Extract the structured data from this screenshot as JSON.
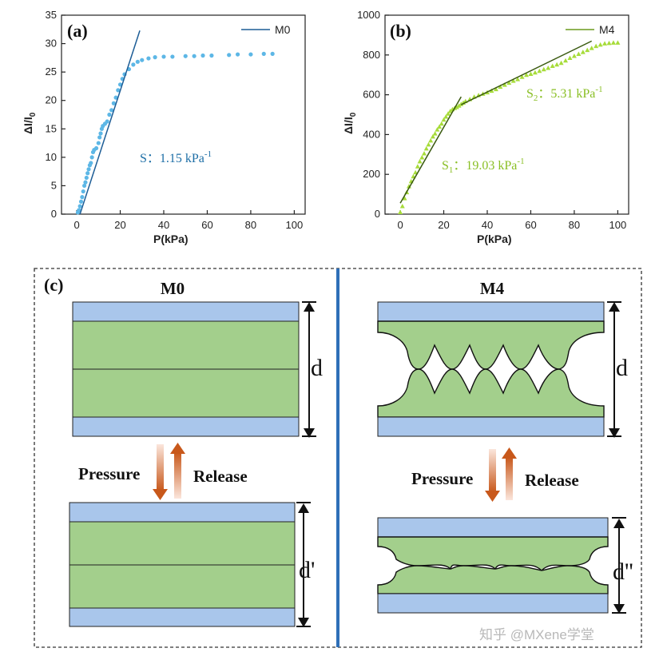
{
  "chart_data": [
    {
      "panel": "(a)",
      "type": "scatter",
      "xlabel": "P(kPa)",
      "ylabel": "ΔI/I",
      "ylabel_sub": "0",
      "xlim": [
        -7,
        105
      ],
      "ylim": [
        0,
        35
      ],
      "xticks": [
        "0",
        "20",
        "40",
        "60",
        "80",
        "100"
      ],
      "yticks": [
        "0",
        "5",
        "10",
        "15",
        "20",
        "25",
        "30",
        "35"
      ],
      "legend": "M0",
      "marker_color": "#5db7e6",
      "fit_color": "#1d5d96",
      "annotation": {
        "text": "S：1.15 kPa",
        "sup": "-1",
        "color": "#1d6ea6"
      },
      "points": [
        [
          0.5,
          0.3
        ],
        [
          1,
          0.7
        ],
        [
          1.5,
          1.4
        ],
        [
          2,
          2.2
        ],
        [
          2.5,
          3.0
        ],
        [
          3,
          4.0
        ],
        [
          3.5,
          5.0
        ],
        [
          4,
          5.6
        ],
        [
          4.5,
          6.4
        ],
        [
          5,
          7.2
        ],
        [
          5.5,
          7.9
        ],
        [
          6,
          8.6
        ],
        [
          6.5,
          9.0
        ],
        [
          7,
          10.0
        ],
        [
          7.5,
          10.9
        ],
        [
          8,
          11.3
        ],
        [
          9,
          11.6
        ],
        [
          10,
          12.5
        ],
        [
          10.5,
          13.5
        ],
        [
          11,
          14.2
        ],
        [
          11.5,
          15.0
        ],
        [
          12,
          15.5
        ],
        [
          13,
          15.9
        ],
        [
          14,
          16.3
        ],
        [
          15,
          17.5
        ],
        [
          16,
          18.3
        ],
        [
          17,
          19.5
        ],
        [
          18,
          20.5
        ],
        [
          19,
          21.8
        ],
        [
          20,
          22.8
        ],
        [
          21,
          23.8
        ],
        [
          22,
          24.6
        ],
        [
          24,
          25.5
        ],
        [
          26,
          26.3
        ],
        [
          28,
          26.8
        ],
        [
          30,
          27.1
        ],
        [
          33,
          27.4
        ],
        [
          36,
          27.6
        ],
        [
          40,
          27.7
        ],
        [
          44,
          27.7
        ],
        [
          50,
          27.8
        ],
        [
          54,
          27.8
        ],
        [
          58,
          27.9
        ],
        [
          62,
          27.9
        ],
        [
          70,
          28.0
        ],
        [
          74,
          28.1
        ],
        [
          80,
          28.1
        ],
        [
          86,
          28.2
        ],
        [
          90,
          28.2
        ]
      ],
      "fit_line": [
        [
          1.5,
          0
        ],
        [
          29,
          32.3
        ]
      ]
    },
    {
      "panel": "(b)",
      "type": "scatter",
      "xlabel": "P(kPa)",
      "ylabel": "ΔI/I",
      "ylabel_sub": "0",
      "xlim": [
        -7,
        105
      ],
      "ylim": [
        0,
        1000
      ],
      "xticks": [
        "0",
        "20",
        "40",
        "60",
        "80",
        "100"
      ],
      "yticks": [
        "0",
        "200",
        "400",
        "600",
        "800",
        "1000"
      ],
      "legend": "M4",
      "marker_color": "#a7dc3a",
      "fit_color": "#3a5a10",
      "annotations": [
        {
          "text": "S",
          "sub": "2",
          "rest": "：5.31 kPa",
          "sup": "-1",
          "color": "#8abf25"
        },
        {
          "text": "S",
          "sub": "1",
          "rest": "：19.03 kPa",
          "sup": "-1",
          "color": "#8abf25"
        }
      ],
      "points": [
        [
          0,
          10
        ],
        [
          1,
          40
        ],
        [
          2,
          80
        ],
        [
          3,
          110
        ],
        [
          4,
          140
        ],
        [
          5,
          165
        ],
        [
          6,
          190
        ],
        [
          7,
          210
        ],
        [
          8,
          240
        ],
        [
          9,
          265
        ],
        [
          10,
          285
        ],
        [
          11,
          305
        ],
        [
          12,
          330
        ],
        [
          13,
          350
        ],
        [
          14,
          370
        ],
        [
          15,
          390
        ],
        [
          16,
          405
        ],
        [
          17,
          425
        ],
        [
          18,
          440
        ],
        [
          19,
          455
        ],
        [
          20,
          475
        ],
        [
          21,
          490
        ],
        [
          22,
          505
        ],
        [
          23,
          518
        ],
        [
          24,
          527
        ],
        [
          25,
          533
        ],
        [
          26,
          538
        ],
        [
          27,
          545
        ],
        [
          28,
          553
        ],
        [
          29,
          560
        ],
        [
          30,
          568
        ],
        [
          32,
          578
        ],
        [
          34,
          590
        ],
        [
          36,
          598
        ],
        [
          38,
          605
        ],
        [
          40,
          612
        ],
        [
          42,
          620
        ],
        [
          44,
          628
        ],
        [
          46,
          640
        ],
        [
          48,
          650
        ],
        [
          50,
          660
        ],
        [
          52,
          670
        ],
        [
          54,
          678
        ],
        [
          56,
          690
        ],
        [
          58,
          700
        ],
        [
          60,
          705
        ],
        [
          62,
          712
        ],
        [
          64,
          720
        ],
        [
          66,
          728
        ],
        [
          68,
          735
        ],
        [
          70,
          745
        ],
        [
          72,
          752
        ],
        [
          74,
          760
        ],
        [
          76,
          772
        ],
        [
          78,
          785
        ],
        [
          80,
          795
        ],
        [
          82,
          805
        ],
        [
          84,
          815
        ],
        [
          86,
          825
        ],
        [
          88,
          835
        ],
        [
          90,
          845
        ],
        [
          92,
          852
        ],
        [
          94,
          858
        ],
        [
          96,
          860
        ],
        [
          98,
          862
        ],
        [
          100,
          862
        ]
      ],
      "fit_lines": [
        [
          [
            0,
            55
          ],
          [
            28,
            590
          ]
        ],
        [
          [
            28,
            550
          ],
          [
            88,
            870
          ]
        ]
      ]
    }
  ],
  "panel_c": {
    "tag": "(c)",
    "left_title": "M0",
    "right_title": "M4",
    "pressure_label": "Pressure",
    "release_label": "Release",
    "dim_d": "d",
    "dim_d_prime": "d'",
    "dim_d_double_prime": "d''",
    "colors": {
      "electrode": "#a9c6eb",
      "foam": "#a3cf8c",
      "divider": "#2f6fb8",
      "arrow": "#c8581b"
    }
  },
  "watermark": "知乎 @MXene学堂"
}
